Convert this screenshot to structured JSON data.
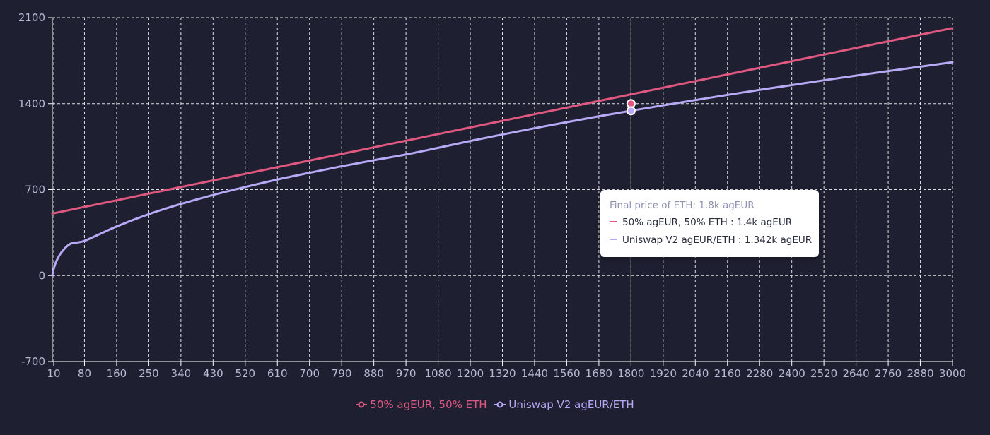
{
  "chart_data": {
    "type": "line",
    "title": "",
    "xlabel": "",
    "ylabel": "",
    "x_ticks": [
      10,
      80,
      160,
      250,
      340,
      430,
      520,
      610,
      700,
      790,
      880,
      970,
      1080,
      1200,
      1320,
      1440,
      1560,
      1680,
      1800,
      1920,
      2040,
      2160,
      2280,
      2400,
      2520,
      2640,
      2760,
      2880,
      3000
    ],
    "y_ticks": [
      -700,
      0,
      700,
      1400,
      2100
    ],
    "ylim": [
      -700,
      2100
    ],
    "grid": true,
    "legend_position": "bottom-center",
    "series": [
      {
        "name": "50% agEUR, 50% ETH",
        "color": "#e0577f",
        "x": [
          10,
          80,
          160,
          250,
          340,
          430,
          520,
          610,
          700,
          790,
          880,
          970,
          1080,
          1200,
          1320,
          1440,
          1560,
          1680,
          1800,
          1920,
          2040,
          2160,
          2280,
          2400,
          2520,
          2640,
          2760,
          2880,
          3000
        ],
        "y": [
          505,
          558,
          620,
          685,
          748,
          810,
          869,
          927,
          983,
          1038,
          1091,
          1143,
          1206,
          1270,
          1332,
          1394,
          1453,
          1512,
          1400,
          1446,
          1514,
          1580,
          1645,
          1709,
          1772,
          1834,
          1895,
          1955,
          2015
        ]
      },
      {
        "name": "Uniswap V2 agEUR/ETH",
        "color": "#b7a9f5",
        "x": [
          10,
          80,
          160,
          250,
          340,
          430,
          520,
          610,
          700,
          790,
          880,
          970,
          1080,
          1200,
          1320,
          1440,
          1560,
          1680,
          1800,
          1920,
          2040,
          2160,
          2280,
          2400,
          2520,
          2640,
          2760,
          2880,
          3000
        ],
        "y": [
          100,
          283,
          400,
          500,
          583,
          656,
          721,
          782,
          837,
          890,
          939,
          986,
          1040,
          1096,
          1149,
          1200,
          1249,
          1297,
          1342,
          1386,
          1429,
          1471,
          1512,
          1551,
          1590,
          1628,
          1665,
          1701,
          1737
        ]
      }
    ],
    "hover": {
      "x": 1800,
      "points": [
        {
          "series": 0,
          "y": 1400
        },
        {
          "series": 1,
          "y": 1342
        }
      ]
    }
  },
  "tooltip": {
    "title": "Final price of ETH: 1.8k agEUR",
    "rows": [
      {
        "text": "50% agEUR, 50% ETH : 1.4k agEUR",
        "color": "#e0577f"
      },
      {
        "text": "Uniswap V2 agEUR/ETH : 1.342k agEUR",
        "color": "#b7a9f5"
      }
    ]
  },
  "legend": [
    {
      "label": "50% agEUR, 50% ETH",
      "color": "#e0577f"
    },
    {
      "label": "Uniswap V2 agEUR/ETH",
      "color": "#b7a9f5"
    }
  ],
  "colors": {
    "background": "#1e2031",
    "grid": "#ffffff",
    "tick_text": "#b7b9d3"
  }
}
